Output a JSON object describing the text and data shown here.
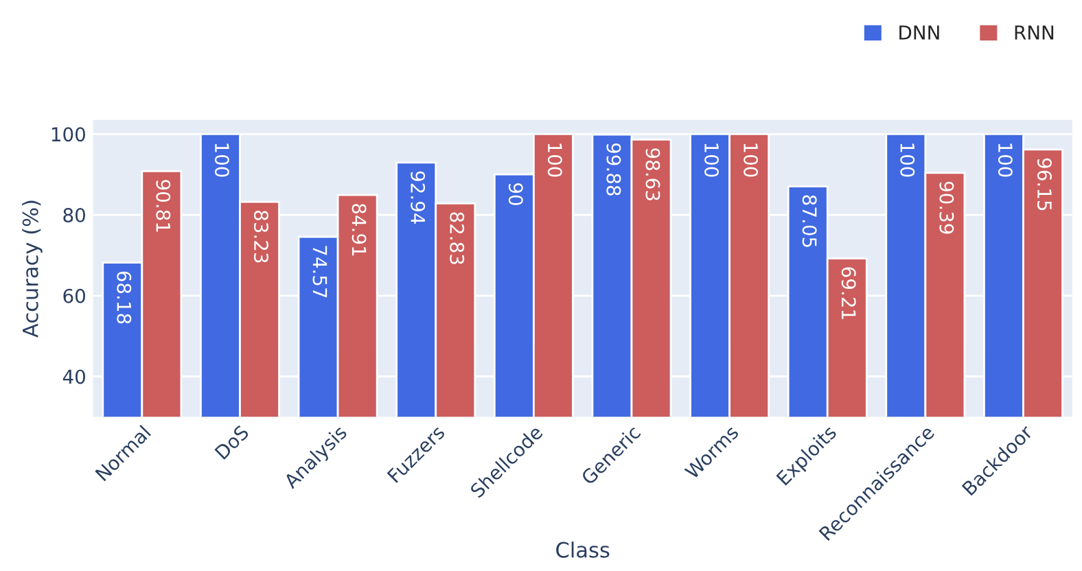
{
  "chart_data": {
    "type": "bar",
    "xlabel": "Class",
    "ylabel": "Accuracy (%)",
    "categories": [
      "Normal",
      "DoS",
      "Analysis",
      "Fuzzers",
      "Shellcode",
      "Generic",
      "Worms",
      "Exploits",
      "Reconnaissance",
      "Backdoor"
    ],
    "series": [
      {
        "name": "DNN",
        "color": "#4169e1",
        "values": [
          68.18,
          100,
          74.57,
          92.94,
          90,
          99.88,
          100,
          87.05,
          100,
          100
        ]
      },
      {
        "name": "RNN",
        "color": "#cd5c5c",
        "values": [
          90.81,
          83.23,
          84.91,
          82.83,
          100,
          98.63,
          100,
          69.21,
          90.39,
          96.15
        ]
      }
    ],
    "ylim": [
      30,
      103.5
    ],
    "yticks": [
      40,
      60,
      80,
      100
    ],
    "grid": "y",
    "legend": "top right",
    "data_labels": true
  }
}
